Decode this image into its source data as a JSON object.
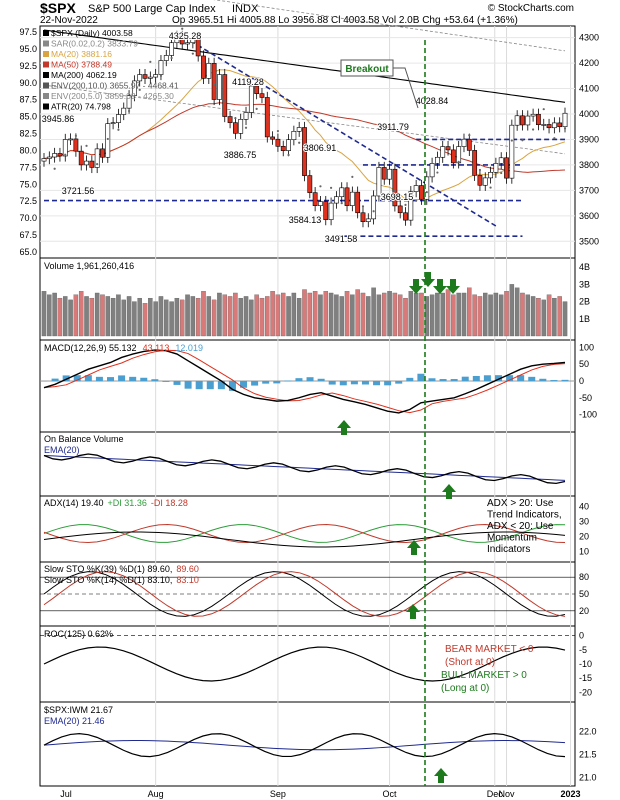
{
  "header": {
    "symbol": "$SPX",
    "name": "S&P 500 Large Cap Index",
    "exchange": "INDX",
    "date": "22-Nov-2022",
    "ohlc": "Op 3965.51  Hi 4005.88  Lo 3956.88  Cl 4003.58  Vol 2.0B  Chg +53.64 (+1.36%)",
    "copyright": "© StockCharts.com"
  },
  "chart_data": [
    {
      "type": "line",
      "panel": "price",
      "legend": [
        {
          "label": "$SPX (Daily) 4003.58",
          "color": "#000000"
        },
        {
          "label": "SAR(0.02,0.2) 3833.79",
          "color": "#888888"
        },
        {
          "label": "MA(20) 3881.16",
          "color": "#d9a441"
        },
        {
          "label": "MA(50) 3788.49",
          "color": "#c0392b"
        },
        {
          "label": "MA(200) 4062.19",
          "color": "#000000"
        },
        {
          "label": "ENV(200,10.0) 3655.97 - 4468.41",
          "color": "#555555"
        },
        {
          "label": "ENV(200,5.0) 3859.08 - 4265.30",
          "color": "#888888"
        },
        {
          "label": "ATR(20) 74.798",
          "color": "#000000"
        }
      ],
      "left_ticks": [
        "97.5",
        "95.0",
        "92.5",
        "90.0",
        "87.5",
        "85.0",
        "82.5",
        "80.0",
        "77.5",
        "75.0",
        "72.5",
        "70.0",
        "67.5",
        "65.0"
      ],
      "right_ticks": [
        "4300",
        "4200",
        "4100",
        "4000",
        "3900",
        "3800",
        "3700",
        "3600",
        "3500"
      ],
      "ylim": [
        3450,
        4330
      ],
      "months": [
        "Jul",
        "Aug",
        "Sep",
        "Oct",
        "Nov",
        "Dec",
        "2023"
      ],
      "annotations": [
        "4325.28",
        "4119.28",
        "3945.86",
        "3886.75",
        "3806.91",
        "3911.79",
        "4028.84",
        "3721.56",
        "3698.15",
        "3584.13",
        "3491.58",
        "Breakout"
      ],
      "levels": [
        3900,
        3800,
        3660,
        3520
      ],
      "closes": [
        3825,
        3831,
        3845,
        3835,
        3900,
        3902,
        3854,
        3800,
        3815,
        3790,
        3863,
        3830,
        3962,
        3966,
        3998,
        4023,
        4072,
        4130,
        4155,
        4140,
        4145,
        4155,
        4210,
        4230,
        4280,
        4305,
        4275,
        4280,
        4297,
        4228,
        4140,
        4199,
        4057,
        4155,
        3990,
        3966,
        3924,
        3979,
        4006,
        4110,
        4080,
        4065,
        3910,
        3901,
        3873,
        3856,
        3899,
        3932,
        3947,
        3758,
        3691,
        3640,
        3656,
        3585,
        3650,
        3675,
        3710,
        3640,
        3693,
        3612,
        3577,
        3588,
        3678,
        3790,
        3744,
        3783,
        3639,
        3612,
        3583,
        3695,
        3719,
        3665,
        3753,
        3806,
        3830,
        3872,
        3859,
        3808,
        3872,
        3901,
        3857,
        3759,
        3720,
        3749,
        3771,
        3806,
        3828,
        3748,
        3956,
        3993,
        3957,
        3992,
        3999,
        3958,
        3959,
        3946,
        3965,
        3950,
        4003
      ]
    },
    {
      "type": "bar",
      "panel": "volume",
      "label": "Volume 1,961,260,416",
      "ticks": [
        "4B",
        "3B",
        "2B",
        "1B"
      ],
      "values": [
        2.6,
        2.4,
        2.5,
        2.2,
        2.3,
        2.1,
        2.4,
        2.6,
        2.3,
        2.2,
        2.5,
        2.4,
        2.3,
        2.2,
        2.4,
        2.1,
        2.3,
        2.0,
        2.2,
        1.9,
        2.2,
        2.0,
        2.3,
        2.1,
        2.0,
        2.2,
        2.1,
        2.4,
        2.3,
        2.2,
        2.6,
        2.3,
        2.1,
        2.5,
        2.4,
        2.3,
        2.5,
        2.2,
        2.3,
        2.1,
        2.4,
        2.2,
        2.3,
        2.6,
        2.4,
        2.5,
        2.3,
        2.5,
        2.2,
        2.7,
        2.5,
        2.6,
        2.4,
        2.6,
        2.5,
        2.4,
        2.3,
        2.6,
        2.4,
        2.7,
        2.5,
        2.3,
        2.8,
        2.4,
        2.5,
        2.6,
        2.5,
        2.4,
        2.2,
        2.6,
        2.5,
        2.5,
        2.3,
        2.4,
        2.5,
        2.5,
        2.7,
        2.4,
        2.5,
        2.5,
        2.8,
        2.4,
        2.3,
        2.5,
        2.4,
        2.5,
        2.4,
        2.6,
        3.0,
        2.8,
        2.5,
        2.4,
        2.3,
        2.2,
        2.1,
        2.4,
        2.2,
        2.3,
        2.0
      ]
    },
    {
      "type": "line",
      "panel": "macd",
      "legend": [
        {
          "label": "MACD(12,26,9) 55.132",
          "color": "#000000"
        },
        {
          "label": "43.113",
          "color": "#e0301e"
        },
        {
          "label": "12.019",
          "color": "#4a9fd0"
        }
      ],
      "ticks": [
        "100",
        "50",
        "0",
        "-50",
        "-100"
      ],
      "ylim": [
        -140,
        110
      ],
      "macd": [
        -20,
        -10,
        5,
        20,
        35,
        45,
        55,
        70,
        80,
        88,
        92,
        90,
        80,
        60,
        40,
        20,
        0,
        -25,
        -40,
        -50,
        -55,
        -60,
        -58,
        -50,
        -40,
        -35,
        -45,
        -55,
        -62,
        -70,
        -80,
        -90,
        -95,
        -85,
        -65,
        -60,
        -55,
        -50,
        -38,
        -25,
        -10,
        5,
        20,
        35,
        45,
        50,
        52,
        55
      ]
    },
    {
      "type": "line",
      "panel": "obv",
      "legend": [
        {
          "label": "On Balance Volume",
          "color": "#000000"
        },
        {
          "label": "EMA(20)",
          "color": "#1f2a8f"
        }
      ]
    },
    {
      "type": "line",
      "panel": "adx",
      "legend": [
        {
          "label": "ADX(14) 19.40",
          "color": "#000000"
        },
        {
          "label": "+DI 31.36",
          "color": "#2e9e3a"
        },
        {
          "label": "-DI 18.28",
          "color": "#c0392b"
        }
      ],
      "ticks": [
        "40",
        "30",
        "20",
        "10"
      ],
      "ylim": [
        5,
        45
      ],
      "notes": [
        "ADX > 20: Use",
        "Trend Indicators,",
        "ADX < 20: Use",
        "Momentum",
        "Indicators"
      ]
    },
    {
      "type": "line",
      "panel": "sto",
      "legend": [
        {
          "label": "Slow STO %K(39) %D(1) 89.60,",
          "color": "#000000"
        },
        {
          "label": "89.60",
          "color": "#c0392b"
        },
        {
          "label": "Slow STO %K(14) %D(1) 83.10,",
          "color": "#000000"
        },
        {
          "label": "83.10",
          "color": "#c0392b"
        }
      ],
      "ticks": [
        "80",
        "50",
        "20"
      ],
      "ylim": [
        0,
        100
      ]
    },
    {
      "type": "line",
      "panel": "roc",
      "legend": [
        {
          "label": "ROC(125) 0.62%",
          "color": "#000000"
        }
      ],
      "ticks": [
        "0",
        "-5",
        "-10",
        "-15",
        "-20"
      ],
      "ylim": [
        -22,
        2
      ],
      "notes": [
        {
          "text": "BEAR MARKET < 0",
          "color": "#c0392b"
        },
        {
          "text": "(Short at 0)",
          "color": "#c0392b"
        },
        {
          "text": "BULL MARKET > 0",
          "color": "#1d7a1d"
        },
        {
          "text": "(Long at 0)",
          "color": "#1d7a1d"
        }
      ]
    },
    {
      "type": "line",
      "panel": "ratio",
      "legend": [
        {
          "label": "$SPX:IWM 21.67",
          "color": "#000000"
        },
        {
          "label": "EMA(20) 21.46",
          "color": "#1f2a8f"
        }
      ],
      "ticks": [
        "22.0",
        "21.5",
        "21.0"
      ],
      "ylim": [
        20.9,
        22.55
      ]
    }
  ],
  "colors": {
    "up": "#ffffff",
    "down": "#e0301e",
    "vol_down": "#d97a7a",
    "vol_up": "#808080",
    "dashed_level": "#1f2a8f",
    "signal_green": "#1d7a1d",
    "ma20": "#d9a441",
    "ma50": "#c0392b"
  }
}
